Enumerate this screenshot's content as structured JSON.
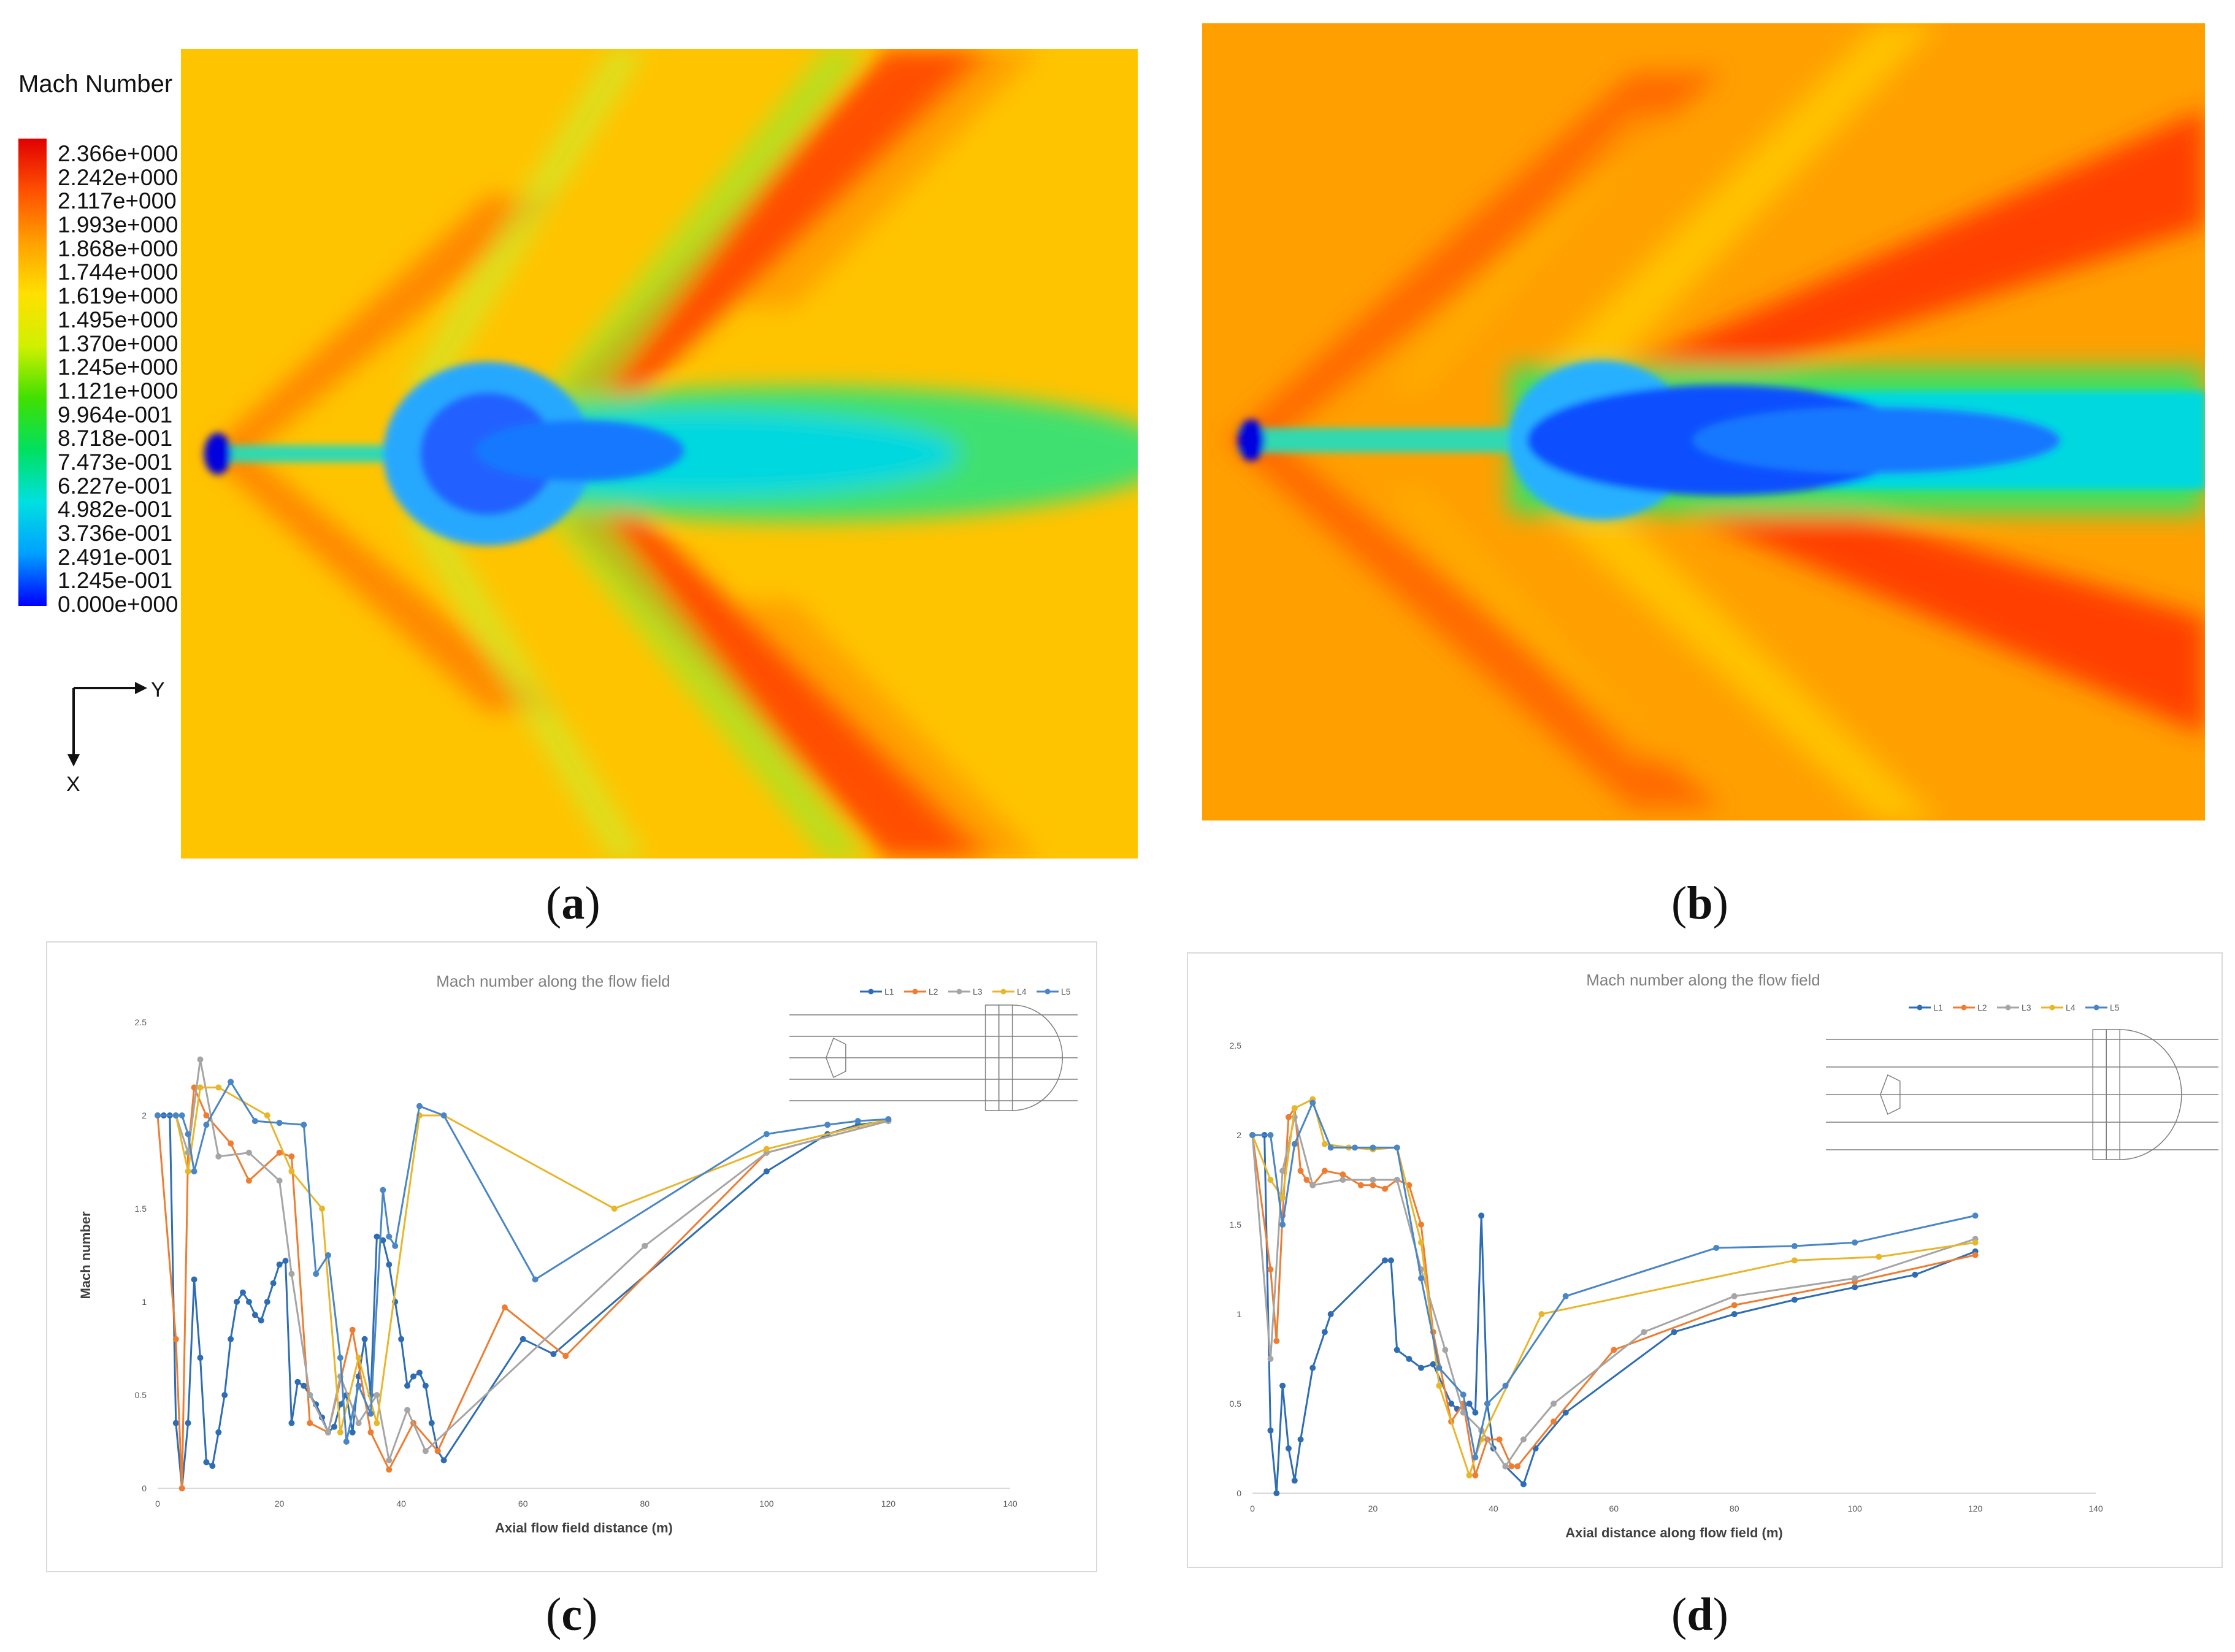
{
  "contour_legend": {
    "title": "Mach Number",
    "ticks": [
      "2.366e+000",
      "2.242e+000",
      "2.117e+000",
      "1.993e+000",
      "1.868e+000",
      "1.744e+000",
      "1.619e+000",
      "1.495e+000",
      "1.370e+000",
      "1.245e+000",
      "1.121e+000",
      "9.964e-001",
      "8.718e-001",
      "7.473e-001",
      "6.227e-001",
      "4.982e-001",
      "3.736e-001",
      "2.491e-001",
      "1.245e-001",
      "0.000e+000"
    ],
    "colormap": [
      "#0000ff",
      "#00a0ff",
      "#00e0e0",
      "#00e060",
      "#40e000",
      "#d0f000",
      "#ffe000",
      "#ffa000",
      "#ff5000",
      "#e00000"
    ],
    "axis_y": "Y",
    "axis_x": "X"
  },
  "panels": {
    "a": "a",
    "b": "b",
    "c": "c",
    "d": "d"
  },
  "chart_data": [
    {
      "panel": "c",
      "type": "line",
      "title": "Mach number along the flow field",
      "xlabel": "Axial flow field distance (m)",
      "ylabel": "Mach number",
      "xlim": [
        0,
        140
      ],
      "ylim": [
        0,
        2.5
      ],
      "xticks": [
        0,
        20,
        40,
        60,
        80,
        100,
        120,
        140
      ],
      "yticks": [
        0,
        0.5,
        1,
        1.5,
        2,
        2.5
      ],
      "series": [
        {
          "name": "L1",
          "color": "#2e6db4",
          "x": [
            0,
            1,
            2,
            3,
            4,
            5,
            6,
            7,
            8,
            9,
            10,
            11,
            12,
            13,
            14,
            15,
            16,
            17,
            18,
            19,
            20,
            21,
            22,
            23,
            24,
            25,
            26,
            27,
            28,
            29,
            30,
            31,
            32,
            33,
            34,
            35,
            36,
            37,
            38,
            39,
            40,
            41,
            42,
            43,
            44,
            45,
            46,
            47,
            60,
            65,
            100,
            110,
            115,
            120
          ],
          "y": [
            2,
            2,
            2,
            0.35,
            0,
            0.35,
            1.12,
            0.7,
            0.14,
            0.12,
            0.3,
            0.5,
            0.8,
            1.0,
            1.05,
            1.0,
            0.93,
            0.9,
            1.0,
            1.1,
            1.2,
            1.22,
            0.35,
            0.57,
            0.55,
            0.5,
            0.45,
            0.38,
            0.3,
            0.33,
            0.45,
            0.5,
            0.3,
            0.6,
            0.8,
            0.5,
            1.35,
            1.33,
            1.2,
            1.0,
            0.8,
            0.55,
            0.6,
            0.62,
            0.55,
            0.35,
            0.2,
            0.15,
            0.8,
            0.72,
            1.7,
            1.9,
            1.95,
            1.97
          ]
        },
        {
          "name": "L2",
          "color": "#ed7d31",
          "x": [
            0,
            3,
            4,
            5,
            6,
            8,
            12,
            15,
            20,
            22,
            25,
            28,
            32,
            35,
            38,
            42,
            46,
            57,
            67,
            100,
            120
          ],
          "y": [
            2,
            0.8,
            0,
            1.8,
            2.15,
            2.0,
            1.85,
            1.65,
            1.8,
            1.78,
            0.35,
            0.3,
            0.85,
            0.3,
            0.1,
            0.35,
            0.2,
            0.97,
            0.71,
            1.8,
            1.97
          ]
        },
        {
          "name": "L3",
          "color": "#a5a5a5",
          "x": [
            0,
            3,
            5,
            7,
            10,
            15,
            20,
            22,
            25,
            28,
            30,
            33,
            36,
            38,
            41,
            44,
            80,
            100,
            120
          ],
          "y": [
            2,
            2,
            1.8,
            2.3,
            1.78,
            1.8,
            1.65,
            1.15,
            0.5,
            0.3,
            0.6,
            0.35,
            0.5,
            0.15,
            0.42,
            0.2,
            1.3,
            1.8,
            1.97
          ]
        },
        {
          "name": "L4",
          "color": "#e8b62a",
          "x": [
            0,
            3,
            5,
            7,
            10,
            18,
            22,
            27,
            30,
            33,
            36,
            43,
            47,
            75,
            100,
            120
          ],
          "y": [
            2,
            2,
            1.7,
            2.15,
            2.15,
            2.0,
            1.7,
            1.5,
            0.3,
            0.7,
            0.35,
            2.0,
            2.0,
            1.5,
            1.82,
            1.98
          ]
        },
        {
          "name": "L5",
          "color": "#4a86c5",
          "x": [
            0,
            3,
            4,
            5,
            6,
            8,
            12,
            16,
            20,
            24,
            26,
            28,
            30,
            31,
            33,
            35,
            37,
            38,
            39,
            43,
            47,
            62,
            100,
            110,
            115,
            120
          ],
          "y": [
            2,
            2,
            2,
            1.9,
            1.7,
            1.95,
            2.18,
            1.97,
            1.96,
            1.95,
            1.15,
            1.25,
            0.7,
            0.25,
            0.55,
            0.4,
            1.6,
            1.35,
            1.3,
            2.05,
            2.0,
            1.12,
            1.9,
            1.95,
            1.97,
            1.98
          ]
        }
      ]
    },
    {
      "panel": "d",
      "type": "line",
      "title": "Mach number along the flow field",
      "xlabel": "Axial distance along flow field (m)",
      "ylabel": "Mach number",
      "xlim": [
        0,
        140
      ],
      "ylim": [
        0,
        2.5
      ],
      "xticks": [
        0,
        20,
        40,
        60,
        80,
        100,
        120,
        140
      ],
      "yticks": [
        0,
        0.5,
        1,
        1.5,
        2,
        2.5
      ],
      "series": [
        {
          "name": "L1",
          "color": "#2e6db4",
          "x": [
            0,
            2,
            3,
            4,
            5,
            6,
            7,
            8,
            10,
            12,
            13,
            22,
            23,
            24,
            26,
            28,
            30,
            33,
            34,
            35,
            36,
            37,
            38,
            39,
            40,
            42,
            45,
            47,
            52,
            70,
            80,
            90,
            100,
            110,
            120
          ],
          "y": [
            2,
            2,
            0.35,
            0,
            0.6,
            0.25,
            0.07,
            0.3,
            0.7,
            0.9,
            1.0,
            1.3,
            1.3,
            0.8,
            0.75,
            0.7,
            0.72,
            0.5,
            0.47,
            0.48,
            0.5,
            0.45,
            1.55,
            0.5,
            0.25,
            0.15,
            0.05,
            0.25,
            0.45,
            0.9,
            1.0,
            1.08,
            1.15,
            1.22,
            1.35
          ]
        },
        {
          "name": "L2",
          "color": "#ed7d31",
          "x": [
            0,
            3,
            4,
            5,
            6,
            7,
            8,
            9,
            10,
            12,
            15,
            18,
            20,
            22,
            24,
            26,
            28,
            30,
            33,
            35,
            37,
            39,
            41,
            43,
            44,
            50,
            60,
            80,
            100,
            120
          ],
          "y": [
            2,
            1.25,
            0.85,
            1.55,
            2.1,
            2.15,
            1.8,
            1.75,
            1.72,
            1.8,
            1.78,
            1.72,
            1.72,
            1.7,
            1.75,
            1.72,
            1.5,
            0.9,
            0.4,
            0.5,
            0.1,
            0.3,
            0.3,
            0.15,
            0.15,
            0.4,
            0.8,
            1.05,
            1.18,
            1.33
          ]
        },
        {
          "name": "L3",
          "color": "#a5a5a5",
          "x": [
            0,
            3,
            5,
            7,
            10,
            15,
            20,
            24,
            28,
            32,
            35,
            38,
            42,
            45,
            50,
            65,
            80,
            100,
            120
          ],
          "y": [
            2,
            0.75,
            1.8,
            2.1,
            1.72,
            1.75,
            1.75,
            1.75,
            1.25,
            0.8,
            0.45,
            0.35,
            0.15,
            0.3,
            0.5,
            0.9,
            1.1,
            1.2,
            1.42
          ]
        },
        {
          "name": "L4",
          "color": "#e8b62a",
          "x": [
            0,
            3,
            5,
            7,
            10,
            12,
            16,
            20,
            24,
            28,
            31,
            36,
            38,
            48,
            90,
            104,
            120
          ],
          "y": [
            2,
            1.75,
            1.65,
            2.15,
            2.2,
            1.95,
            1.93,
            1.92,
            1.93,
            1.4,
            0.6,
            0.1,
            0.3,
            1.0,
            1.3,
            1.32,
            1.4
          ]
        },
        {
          "name": "L5",
          "color": "#4a86c5",
          "x": [
            0,
            3,
            5,
            7,
            10,
            13,
            17,
            20,
            24,
            28,
            31,
            35,
            37,
            39,
            42,
            52,
            77,
            90,
            100,
            120
          ],
          "y": [
            2,
            2,
            1.5,
            1.95,
            2.18,
            1.93,
            1.93,
            1.93,
            1.93,
            1.2,
            0.7,
            0.55,
            0.2,
            0.5,
            0.6,
            1.1,
            1.37,
            1.38,
            1.4,
            1.55
          ]
        }
      ]
    }
  ]
}
